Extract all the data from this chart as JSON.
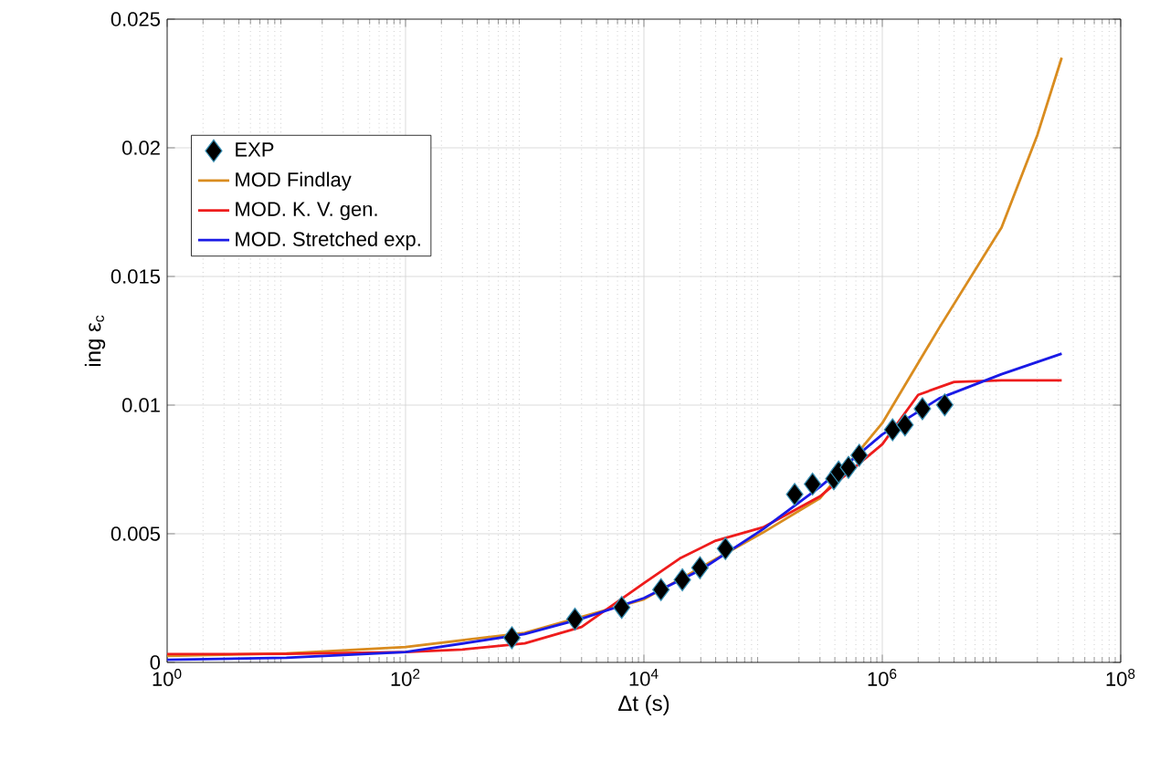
{
  "chart_data": {
    "type": "line",
    "xlabel": "Δt  (s)",
    "ylabel": "ing ε$_{c}$",
    "log": "x",
    "xlim": [
      1,
      100000000
    ],
    "ylim": [
      0,
      0.025
    ],
    "xticks": [
      {
        "value": 1,
        "label": "10$^{0}$"
      },
      {
        "value": 100,
        "label": "10$^{2}$"
      },
      {
        "value": 10000,
        "label": "10$^{4}$"
      },
      {
        "value": 1000000,
        "label": "10$^{6}$"
      },
      {
        "value": 100000000,
        "label": "10$^{8}$"
      }
    ],
    "yticks": [
      0,
      0.005,
      0.01,
      0.015,
      0.02,
      0.025
    ],
    "grid": true,
    "legend": "top left",
    "series": [
      {
        "name": "EXP",
        "type": "scatter",
        "marker": "diamond",
        "color": "#000000",
        "x": [
          780,
          2640,
          6510,
          13900,
          21000,
          29500,
          48300,
          184000,
          260000,
          392000,
          430000,
          520000,
          640000,
          1220000,
          1550000,
          2170000,
          3340000
        ],
        "values": [
          0.00096,
          0.00168,
          0.00214,
          0.00283,
          0.00321,
          0.00368,
          0.00442,
          0.00653,
          0.00693,
          0.00714,
          0.0074,
          0.00758,
          0.00805,
          0.00904,
          0.00923,
          0.00986,
          0.01001
        ]
      },
      {
        "name": "MOD Findlay",
        "color": "#d98c1f",
        "x": [
          1,
          10,
          100,
          1000,
          10000,
          100000,
          300000,
          1000000,
          3000000,
          10000000,
          20000000,
          32000000
        ],
        "values": [
          0.00025,
          0.00035,
          0.0006,
          0.00115,
          0.00245,
          0.00505,
          0.00638,
          0.0093,
          0.013,
          0.0169,
          0.0205,
          0.0235
        ]
      },
      {
        "name": "MOD. K. V. gen.",
        "color": "#ee1c1c",
        "x": [
          1,
          10,
          100,
          300,
          1000,
          3000,
          10000,
          20000,
          40000,
          100000,
          300000,
          1000000,
          2000000,
          4000000,
          10000000,
          32000000
        ],
        "values": [
          0.00032,
          0.00033,
          0.0004,
          0.0005,
          0.00074,
          0.00138,
          0.00308,
          0.00404,
          0.00473,
          0.00525,
          0.00645,
          0.00848,
          0.0104,
          0.0109,
          0.01096,
          0.01096
        ]
      },
      {
        "name": "MOD. Stretched exp.",
        "color": "#1a1ae6",
        "x": [
          1,
          10,
          100,
          1000,
          3000,
          10000,
          30000,
          100000,
          300000,
          1000000,
          3000000,
          10000000,
          32000000
        ],
        "values": [
          0.0001,
          0.00018,
          0.0004,
          0.0011,
          0.0017,
          0.0025,
          0.0036,
          0.00518,
          0.00682,
          0.00886,
          0.01026,
          0.0112,
          0.012
        ]
      }
    ]
  }
}
